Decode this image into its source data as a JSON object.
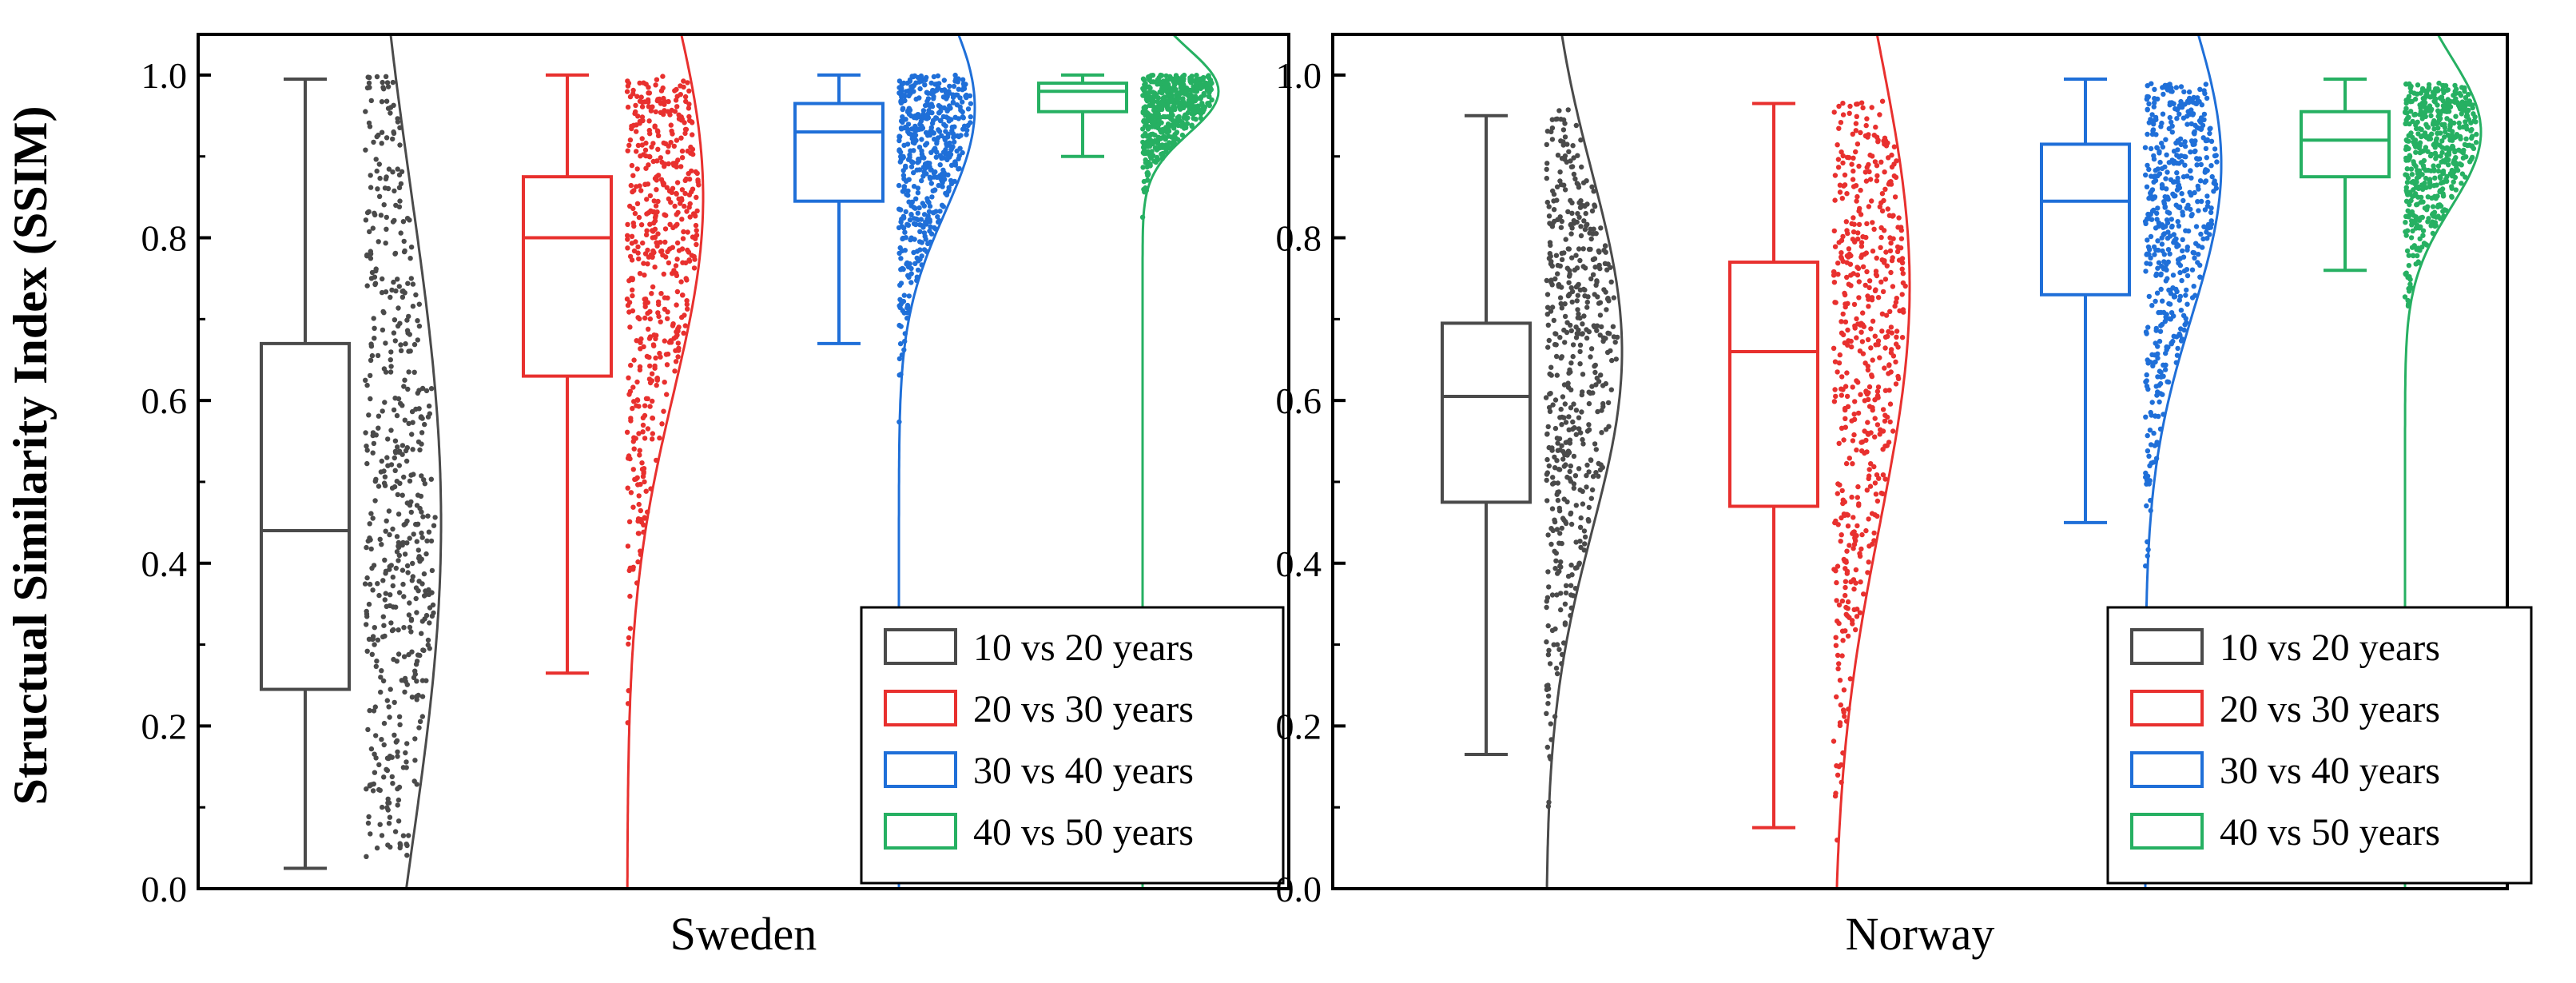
{
  "ylabel": "Structual Similarity Index (SSIM)",
  "y_ticks": [
    "0.0",
    "0.2",
    "0.4",
    "0.6",
    "0.8",
    "1.0"
  ],
  "chart_data": {
    "type": "box",
    "ylabel": "Structual Similarity Index (SSIM)",
    "ylim": [
      0.0,
      1.05
    ],
    "series_names": [
      "10 vs 20 years",
      "20 vs 30 years",
      "30 vs 40 years",
      "40 vs 50 years"
    ],
    "colors": [
      "#4a4a4a",
      "#e8302e",
      "#1f6fd8",
      "#26b062"
    ],
    "legend_position": "bottom-right",
    "panels": [
      {
        "xlabel": "Sweden",
        "boxes": [
          {
            "name": "10 vs 20 years",
            "min": 0.025,
            "q1": 0.245,
            "median": 0.44,
            "q3": 0.67,
            "max": 0.995,
            "points_range": [
              0.03,
              1.0
            ],
            "peak": 0.45
          },
          {
            "name": "20 vs 30 years",
            "min": 0.265,
            "q1": 0.63,
            "median": 0.8,
            "q3": 0.875,
            "max": 1.0,
            "points_range": [
              0.14,
              1.0
            ],
            "peak": 0.85
          },
          {
            "name": "30 vs 40 years",
            "min": 0.67,
            "q1": 0.845,
            "median": 0.93,
            "q3": 0.965,
            "max": 1.0,
            "points_range": [
              0.49,
              1.0
            ],
            "peak": 0.96
          },
          {
            "name": "40 vs 50 years",
            "min": 0.9,
            "q1": 0.955,
            "median": 0.98,
            "q3": 0.99,
            "max": 1.0,
            "points_range": [
              0.66,
              1.0
            ],
            "peak": 0.98
          }
        ]
      },
      {
        "xlabel": "Norway",
        "boxes": [
          {
            "name": "10 vs 20 years",
            "min": 0.165,
            "q1": 0.475,
            "median": 0.605,
            "q3": 0.695,
            "max": 0.95,
            "points_range": [
              0.04,
              0.96
            ],
            "peak": 0.66
          },
          {
            "name": "20 vs 30 years",
            "min": 0.075,
            "q1": 0.47,
            "median": 0.66,
            "q3": 0.77,
            "max": 0.965,
            "points_range": [
              0.0,
              0.97
            ],
            "peak": 0.74
          },
          {
            "name": "30 vs 40 years",
            "min": 0.45,
            "q1": 0.73,
            "median": 0.845,
            "q3": 0.915,
            "max": 0.995,
            "points_range": [
              0.39,
              0.99
            ],
            "peak": 0.89
          },
          {
            "name": "40 vs 50 years",
            "min": 0.76,
            "q1": 0.875,
            "median": 0.92,
            "q3": 0.955,
            "max": 0.995,
            "points_range": [
              0.55,
              0.99
            ],
            "peak": 0.93
          }
        ]
      }
    ]
  }
}
